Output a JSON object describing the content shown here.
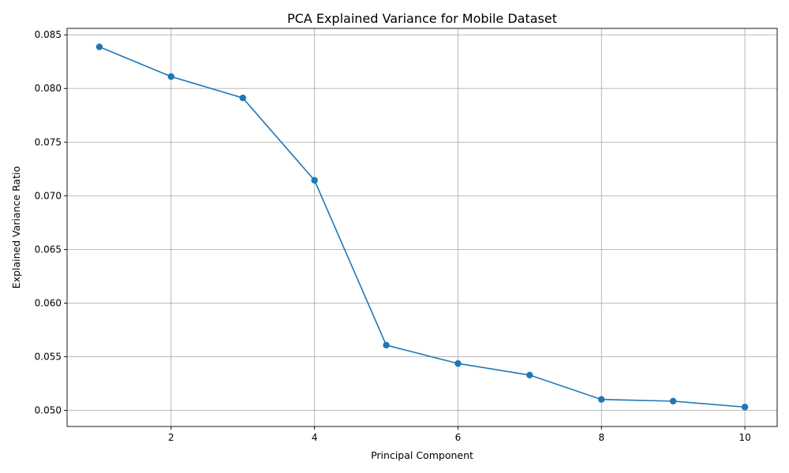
{
  "chart_data": {
    "type": "line",
    "title": "PCA Explained Variance for Mobile Dataset",
    "xlabel": "Principal Component",
    "ylabel": "Explained Variance Ratio",
    "x": [
      1,
      2,
      3,
      4,
      5,
      6,
      7,
      8,
      9,
      10
    ],
    "series": [
      {
        "values": [
          0.08388,
          0.08111,
          0.07912,
          0.07144,
          0.05608,
          0.05437,
          0.05329,
          0.05102,
          0.05086,
          0.05031
        ],
        "color": "#1f77b4",
        "marker": "circle"
      }
    ],
    "xlim": [
      0.55,
      10.45
    ],
    "ylim": [
      0.0485,
      0.0856
    ],
    "xticks": [
      2,
      4,
      6,
      8,
      10
    ],
    "yticks": [
      0.05,
      0.055,
      0.06,
      0.065,
      0.07,
      0.075,
      0.08,
      0.085
    ],
    "xtick_labels": [
      "2",
      "4",
      "6",
      "8",
      "10"
    ],
    "ytick_labels": [
      "0.050",
      "0.055",
      "0.060",
      "0.065",
      "0.070",
      "0.075",
      "0.080",
      "0.085"
    ],
    "grid": true,
    "legend": "none"
  }
}
